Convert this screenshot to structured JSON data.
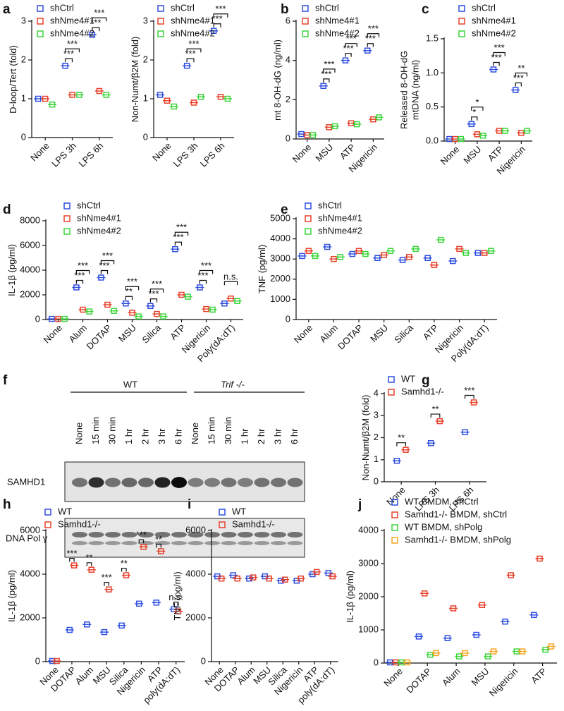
{
  "chart_data": [
    {
      "type": "dot",
      "panel": "a",
      "ylabel": "D-loop/Tert (fold)",
      "categories": [
        "None",
        "LPS 3h",
        "LPS 6h"
      ],
      "series": [
        {
          "name": "shCtrl",
          "color": "#2f4fe0",
          "values": [
            1.0,
            1.85,
            2.65
          ]
        },
        {
          "name": "shNme4#1",
          "color": "#e8402a",
          "values": [
            1.0,
            1.1,
            1.2
          ]
        },
        {
          "name": "shNme4#2",
          "color": "#3cd63c",
          "values": [
            0.85,
            1.1,
            1.1
          ]
        }
      ],
      "ylim": [
        0,
        3
      ],
      "yticks": [
        0,
        1,
        2,
        3
      ],
      "significance": [
        [
          null,
          null
        ],
        [
          "***",
          "***"
        ],
        [
          "***",
          "***"
        ]
      ]
    },
    {
      "type": "dot",
      "ylabel": "Non-Numt/β2M (fold)",
      "categories": [
        "None",
        "LPS 3h",
        "LPS 6h"
      ],
      "series": [
        {
          "name": "shCtrl",
          "color": "#2f4fe0",
          "values": [
            1.1,
            1.85,
            2.75
          ]
        },
        {
          "name": "shNme4#1",
          "color": "#e8402a",
          "values": [
            0.95,
            0.9,
            1.05
          ]
        },
        {
          "name": "shNme4#2",
          "color": "#3cd63c",
          "values": [
            0.8,
            1.05,
            1.0
          ]
        }
      ],
      "ylim": [
        0,
        3
      ],
      "yticks": [
        0,
        1,
        2,
        3
      ],
      "significance": [
        [
          null,
          null
        ],
        [
          "***",
          "***"
        ],
        [
          "***",
          "***"
        ]
      ]
    },
    {
      "type": "dot",
      "panel": "b",
      "ylabel": "mt 8-OH-dG (ng/ml)",
      "categories": [
        "None",
        "MSU",
        "ATP",
        "Nigericin"
      ],
      "series": [
        {
          "name": "shCtrl",
          "color": "#2f4fe0",
          "values": [
            0.25,
            2.7,
            4.0,
            4.5
          ]
        },
        {
          "name": "shNme4#1",
          "color": "#e8402a",
          "values": [
            0.2,
            0.6,
            0.8,
            1.0
          ]
        },
        {
          "name": "shNme4#2",
          "color": "#3cd63c",
          "values": [
            0.2,
            0.65,
            0.75,
            1.1
          ]
        }
      ],
      "ylim": [
        0,
        6
      ],
      "yticks": [
        0,
        2,
        4,
        6
      ],
      "significance": [
        [
          null,
          null
        ],
        [
          "***",
          "***"
        ],
        [
          "***",
          "***"
        ],
        [
          "***",
          "***"
        ]
      ]
    },
    {
      "type": "dot",
      "panel": "c",
      "ylabel": [
        "Released 8-OH-dG",
        "mtDNA (ng/ml)"
      ],
      "categories": [
        "None",
        "MSU",
        "ATP",
        "Nigericin"
      ],
      "series": [
        {
          "name": "shCtrl",
          "color": "#2f4fe0",
          "values": [
            0.03,
            0.25,
            1.05,
            0.75
          ]
        },
        {
          "name": "shNme4#1",
          "color": "#e8402a",
          "values": [
            0.03,
            0.1,
            0.15,
            0.12
          ]
        },
        {
          "name": "shNme4#2",
          "color": "#3cd63c",
          "values": [
            0.03,
            0.08,
            0.15,
            0.15
          ]
        }
      ],
      "ylim": [
        0,
        1.5
      ],
      "yticks": [
        {
          "value": 0,
          "label": "0.0"
        },
        0.5,
        {
          "value": 1,
          "label": "1.0"
        },
        1.5
      ],
      "significance": [
        [
          null,
          null
        ],
        [
          "*",
          "*"
        ],
        [
          "***",
          "***"
        ],
        [
          "***",
          "**"
        ]
      ]
    },
    {
      "type": "dot",
      "panel": "d",
      "ylabel": "IL-1β (pg/ml)",
      "categories": [
        "None",
        "Alum",
        "DOTAP",
        "MSU",
        "Silica",
        "ATP",
        "Nigericin",
        "Poly(dA:dT)"
      ],
      "series": [
        {
          "name": "shCtrl",
          "color": "#2f4fe0",
          "values": [
            50,
            2600,
            3400,
            1300,
            1100,
            5700,
            2600,
            1300
          ]
        },
        {
          "name": "shNme4#1",
          "color": "#e8402a",
          "values": [
            50,
            800,
            1200,
            550,
            450,
            2000,
            850,
            1700
          ]
        },
        {
          "name": "shNme4#2",
          "color": "#3cd63c",
          "values": [
            50,
            650,
            700,
            250,
            250,
            1850,
            800,
            1500
          ]
        }
      ],
      "ylim": [
        0,
        8000
      ],
      "yticks": [
        0,
        2000,
        4000,
        6000,
        8000
      ],
      "significance": [
        [
          null,
          null
        ],
        [
          "***",
          "***"
        ],
        [
          "***",
          "***"
        ],
        [
          "**",
          "***"
        ],
        [
          "***",
          "***"
        ],
        [
          "***",
          "***"
        ],
        [
          "***",
          "***"
        ],
        [
          null,
          "n.s."
        ]
      ]
    },
    {
      "type": "dot",
      "panel": "e",
      "ylabel": "TNF (pg/ml)",
      "categories": [
        "None",
        "Alum",
        "DOTAP",
        "MSU",
        "Silica",
        "ATP",
        "Nigericin",
        "Poly(dA:dT)"
      ],
      "series": [
        {
          "name": "shCtrl",
          "color": "#2f4fe0",
          "values": [
            3150,
            3600,
            3250,
            3050,
            2950,
            3050,
            2900,
            3300
          ]
        },
        {
          "name": "shNme4#1",
          "color": "#e8402a",
          "values": [
            3400,
            3000,
            3400,
            3200,
            3100,
            2700,
            3500,
            3300
          ]
        },
        {
          "name": "shNme4#2",
          "color": "#3cd63c",
          "values": [
            3150,
            3100,
            3250,
            3400,
            3500,
            3950,
            3300,
            3400
          ]
        }
      ],
      "ylim": [
        0,
        5000
      ],
      "yticks": [
        0,
        1000,
        2000,
        3000,
        4000,
        5000
      ]
    },
    {
      "type": "dot",
      "panel": "g",
      "ylabel": "Non-Numt/β2M (fold)",
      "categories": [
        "None",
        "LPS 3h",
        "LPS 6h"
      ],
      "series": [
        {
          "name": "WT",
          "color": "#2f4fe0",
          "values": [
            0.95,
            1.75,
            2.25
          ]
        },
        {
          "name": "Samhd1-/-",
          "color": "#e8402a",
          "values": [
            1.45,
            2.75,
            3.6
          ]
        }
      ],
      "ylim": [
        0,
        4
      ],
      "yticks": [
        0,
        1,
        2,
        3,
        4
      ],
      "significance": [
        [
          "**"
        ],
        [
          "**"
        ],
        [
          "***"
        ]
      ]
    },
    {
      "type": "dot",
      "panel": "h",
      "ylabel": "IL-1β (pg/ml)",
      "categories": [
        "None",
        "DOTAP",
        "Alum",
        "MSU",
        "Silica",
        "Nigericin",
        "ATP",
        "poly(dA:dT)"
      ],
      "series": [
        {
          "name": "WT",
          "color": "#2f4fe0",
          "values": [
            30,
            1450,
            1700,
            1350,
            1650,
            2650,
            2700,
            2400
          ]
        },
        {
          "name": "Samhd1-/-",
          "color": "#e8402a",
          "values": [
            30,
            4400,
            4200,
            3300,
            3950,
            5250,
            5050,
            2300
          ]
        }
      ],
      "ylim": [
        0,
        6000
      ],
      "yticks": [
        0,
        2000,
        4000,
        6000
      ],
      "significance": [
        [
          null
        ],
        [
          "***"
        ],
        [
          "**"
        ],
        [
          "***"
        ],
        [
          "**"
        ],
        [
          "***"
        ],
        [
          "**"
        ],
        [
          "n.s."
        ]
      ]
    },
    {
      "type": "dot",
      "panel": "i",
      "ylabel": "TNF (pg/ml)",
      "categories": [
        "None",
        "DOTAP",
        "Alum",
        "MSU",
        "Silica",
        "Nigericin",
        "ATP",
        "poly(dA:dT)"
      ],
      "series": [
        {
          "name": "WT",
          "color": "#2f4fe0",
          "values": [
            3900,
            3950,
            3800,
            3900,
            3700,
            3700,
            4000,
            4050
          ]
        },
        {
          "name": "Samhd1-/-",
          "color": "#e8402a",
          "values": [
            3800,
            3800,
            3850,
            3800,
            3750,
            3800,
            4100,
            3900
          ]
        }
      ],
      "ylim": [
        0,
        6000
      ],
      "yticks": [
        0,
        2000,
        4000,
        6000
      ]
    },
    {
      "type": "dot",
      "panel": "j",
      "ylabel": "IL-1β (pg/ml)",
      "categories": [
        "None",
        "DOTAP",
        "Alum",
        "MSU",
        "Nigericin",
        "ATP"
      ],
      "series": [
        {
          "name": "WT BMDM, shCtrl",
          "color": "#2f4fe0",
          "values": [
            20,
            800,
            750,
            850,
            1250,
            1450
          ]
        },
        {
          "name": "Samhd1-/- BMDM, shCtrl",
          "color": "#e8402a",
          "values": [
            20,
            2100,
            1650,
            1750,
            2650,
            3150
          ]
        },
        {
          "name": "WT BMDM, shPolg",
          "color": "#3cd63c",
          "values": [
            20,
            250,
            200,
            200,
            350,
            400
          ]
        },
        {
          "name": "Samhd1-/- BMDM, shPolg",
          "color": "#f5a623",
          "values": [
            20,
            300,
            300,
            350,
            350,
            500
          ]
        }
      ],
      "ylim": [
        0,
        4000
      ],
      "yticks": [
        0,
        1000,
        2000,
        3000,
        4000
      ]
    }
  ],
  "blot": {
    "panel": "f",
    "groups": [
      "WT",
      "Trif -/-"
    ],
    "lanes": [
      "None",
      "15 min",
      "30 min",
      "1 hr",
      "2 hr",
      "3 hr",
      "6 hr",
      "None",
      "15 min",
      "30 min",
      "1 hr",
      "2 hr",
      "3 hr",
      "6 hr"
    ],
    "rows": [
      "SAMHD1",
      "DNA Pol γ"
    ]
  }
}
